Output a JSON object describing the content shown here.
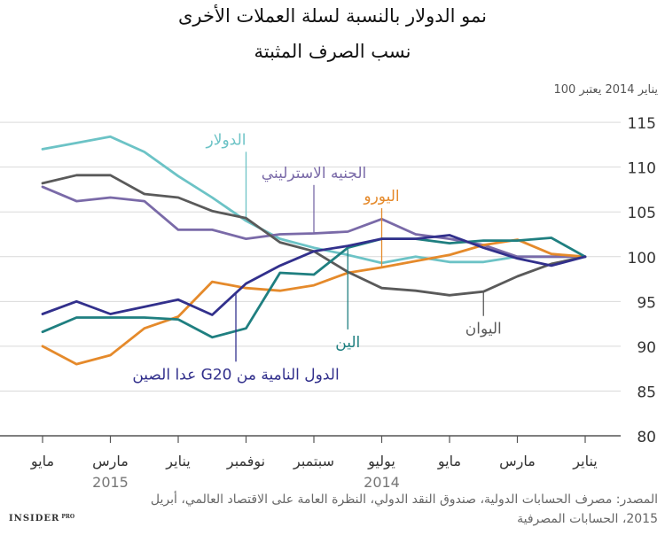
{
  "title": "نمو الدولار بالنسبة لسلة العملات الأخرى",
  "subtitle": "نسب الصرف المثبتة",
  "base_note": "يناير 2014 يعتبر 100",
  "source_line1": "المصدر: مصرف الحسابات الدولية، صندوق النقد الدولي، النظرة العامة على الاقتصاد العالمي، أبريل",
  "source_line2": "2015، الحسابات المصرفية",
  "logo": {
    "text": "INSIDER",
    "suffix": "PRO"
  },
  "chart_data": {
    "type": "line",
    "title": "نمو الدولار بالنسبة لسلة العملات الأخرى",
    "ylabel": "يناير 2014 يعتبر 100",
    "ylim": [
      80,
      116
    ],
    "y_ticks": [
      80,
      85,
      90,
      95,
      100,
      105,
      110,
      115
    ],
    "x_ticks": [
      "مايو",
      "مارس",
      "يناير",
      "نوفمبر",
      "سبتمبر",
      "يوليو",
      "مايو",
      "مارس",
      "يناير"
    ],
    "x_ticks_index": [
      0,
      2,
      4,
      6,
      8,
      10,
      12,
      14,
      16
    ],
    "year_labels": [
      {
        "label": "2015",
        "index": 2
      },
      {
        "label": "2014",
        "index": 10
      }
    ],
    "x_points": 17,
    "series": [
      {
        "name": "الدولار",
        "color": "#6cc3c6",
        "values": [
          112,
          112.7,
          113.4,
          111.7,
          109,
          106.6,
          104,
          102,
          101,
          100.2,
          99.3,
          100,
          99.4,
          99.4,
          100,
          100,
          100
        ],
        "label_index": 6,
        "label_y": 112.5,
        "label_anchor": "start"
      },
      {
        "name": "الجنيه الاسترليني",
        "color": "#7a6aa8",
        "values": [
          107.8,
          106.2,
          106.6,
          106.2,
          103,
          103,
          102,
          102.5,
          102.6,
          102.8,
          104.2,
          102.5,
          102,
          101.3,
          100,
          100,
          100
        ],
        "label_index": 8,
        "label_y": 108.8,
        "label_anchor": "middle"
      },
      {
        "name": "اليورو",
        "color": "#e58a2b",
        "values": [
          90,
          88,
          89,
          92,
          93.3,
          97.2,
          96.5,
          96.2,
          96.8,
          98.2,
          98.8,
          99.5,
          100.2,
          101.3,
          101.9,
          100.3,
          100
        ],
        "label_index": 10,
        "label_y": 106.2,
        "label_anchor": "middle"
      },
      {
        "name": "اليوان",
        "color": "#5a5a5a",
        "values": [
          108.2,
          109.1,
          109.1,
          107,
          106.6,
          105.1,
          104.3,
          101.6,
          100.6,
          98.3,
          96.5,
          96.2,
          95.7,
          96.1,
          97.8,
          99.2,
          100
        ],
        "label_index": 13,
        "label_y": 91.4,
        "label_anchor": "middle"
      },
      {
        "name": "الين",
        "color": "#1f7f80",
        "values": [
          91.6,
          93.2,
          93.2,
          93.2,
          93,
          91,
          92,
          98.2,
          98,
          101,
          102,
          102,
          101.5,
          101.8,
          101.8,
          102.1,
          100
        ],
        "label_index": 9,
        "label_y": 89.9,
        "label_anchor": "middle"
      },
      {
        "name": "الدول النامية من G20 عدا الصين",
        "color": "#32308c",
        "values": [
          93.6,
          95,
          93.6,
          94.4,
          95.2,
          93.5,
          97,
          99,
          100.6,
          101.2,
          102,
          102,
          102.4,
          101,
          99.8,
          99,
          100
        ],
        "label_index": 5.7,
        "label_y": 86.3,
        "label_anchor": "middle"
      }
    ]
  }
}
